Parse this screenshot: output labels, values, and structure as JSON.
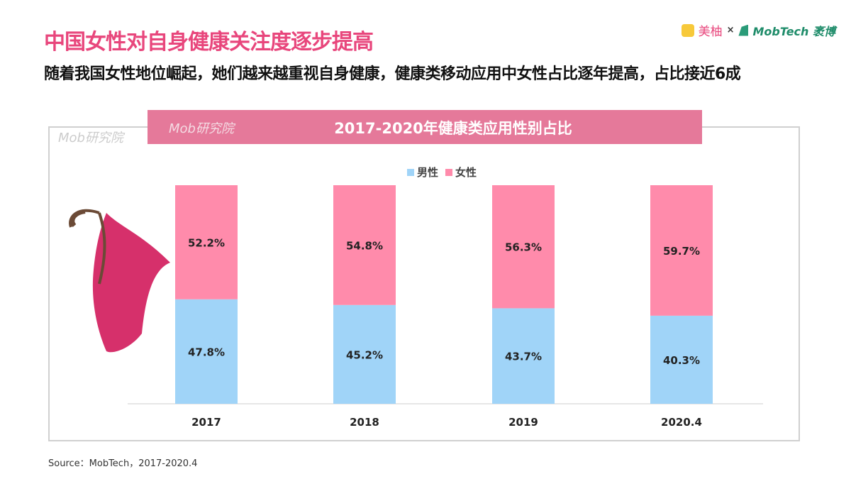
{
  "header": {
    "title": "中国女性对自身健康关注度逐步提高",
    "subtitle": "随着我国女性地位崛起，她们越来越重视自身健康，健康类移动应用中女性占比逐年提高，占比接近6成"
  },
  "logos": {
    "brand1": "美柚",
    "separator": "×",
    "brand2": "MobTech 袤博",
    "watermark": "Mob研究院"
  },
  "source": "Source：MobTech，2017-2020.4",
  "colors": {
    "male": "#a0d4f8",
    "female": "#ff8bab",
    "title": "#e8467c",
    "band": "#e5799a"
  },
  "chart_data": {
    "type": "bar",
    "stacked": true,
    "title": "2017-2020年健康类应用性别占比",
    "categories": [
      "2017",
      "2018",
      "2019",
      "2020.4"
    ],
    "series": [
      {
        "name": "男性",
        "values": [
          47.8,
          45.2,
          43.7,
          40.3
        ]
      },
      {
        "name": "女性",
        "values": [
          52.2,
          54.8,
          56.3,
          59.7
        ]
      }
    ],
    "ylim": [
      0,
      100
    ],
    "unit": "%",
    "legend": "top",
    "grid": false
  }
}
